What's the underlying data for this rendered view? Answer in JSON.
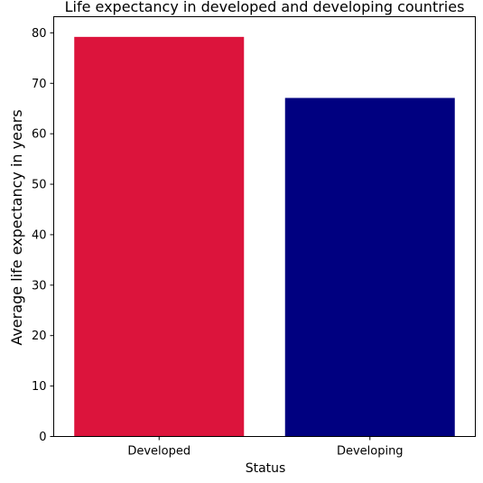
{
  "chart_data": {
    "type": "bar",
    "title": "Life expectancy in developed and developing countries",
    "xlabel": "Status",
    "ylabel": "Average life expectancy in years",
    "categories": [
      "Developed",
      "Developing"
    ],
    "values": [
      79.2,
      67.1
    ],
    "bar_colors": [
      "#DC143C",
      "#000080"
    ],
    "ylim": [
      0,
      83.2
    ],
    "yticks": [
      0,
      10,
      20,
      30,
      40,
      50,
      60,
      70,
      80
    ],
    "grid": false
  }
}
